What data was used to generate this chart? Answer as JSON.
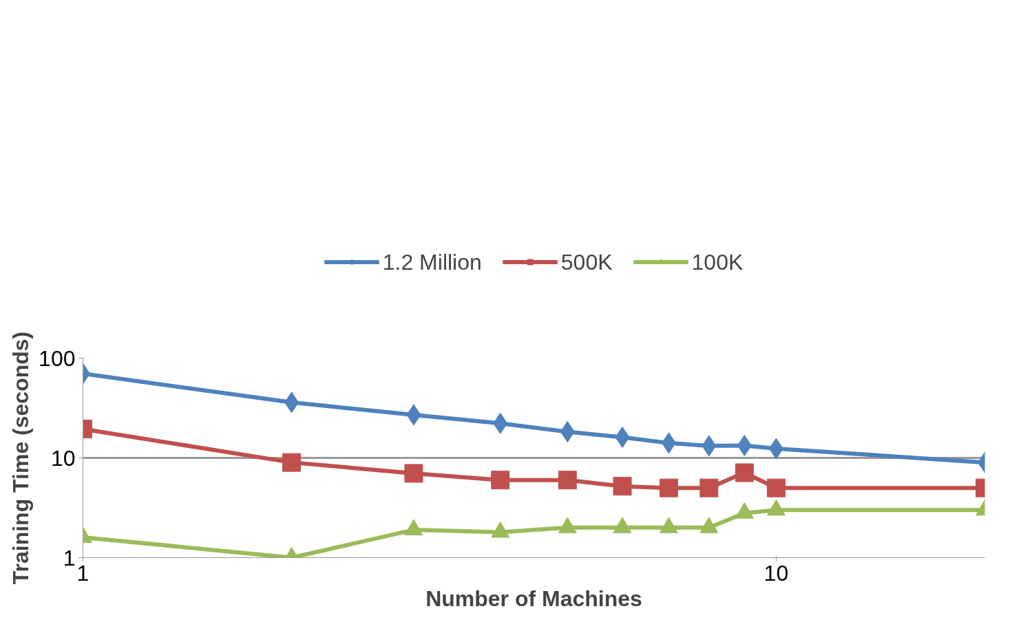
{
  "chart_data": {
    "type": "line",
    "xlabel": "Number of Machines",
    "ylabel": "Training Time (seconds)",
    "log": "xy",
    "x": [
      1,
      2,
      3,
      4,
      5,
      6,
      7,
      8,
      9,
      10,
      20
    ],
    "xlim": [
      1,
      20
    ],
    "xticks": [
      1,
      10
    ],
    "ylim": [
      1,
      100
    ],
    "yticks": [
      1,
      10,
      100
    ],
    "grid": "y",
    "legend": "top",
    "series": [
      {
        "name": "1.2 Million",
        "color": "#4f81bd",
        "marker": "diamond",
        "values": [
          70,
          36,
          27,
          22.2,
          18.3,
          16.1,
          14.1,
          13.2,
          13.3,
          12.4,
          9.0
        ]
      },
      {
        "name": "500K",
        "color": "#c0504d",
        "marker": "square",
        "values": [
          19.5,
          9.0,
          7.0,
          6.0,
          6.0,
          5.2,
          5.0,
          5.0,
          7.1,
          5.0,
          5.0
        ]
      },
      {
        "name": "100K",
        "color": "#9bbb59",
        "marker": "triangle",
        "values": [
          1.6,
          1.0,
          1.9,
          1.8,
          2.0,
          2.0,
          2.0,
          2.0,
          2.8,
          3.0,
          3.0
        ]
      }
    ]
  }
}
